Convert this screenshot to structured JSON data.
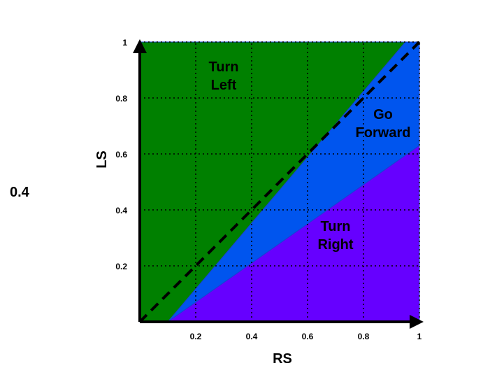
{
  "chart_data": {
    "type": "area",
    "xlabel": "RS",
    "ylabel": "LS",
    "xlim": [
      0,
      1
    ],
    "ylim": [
      0,
      1
    ],
    "x_ticks": [
      {
        "value": 0.2,
        "label": "0.2"
      },
      {
        "value": 0.4,
        "label": "0.4"
      },
      {
        "value": 0.6,
        "label": "0.6"
      },
      {
        "value": 0.8,
        "label": "0.8"
      },
      {
        "value": 1,
        "label": "1"
      }
    ],
    "y_ticks": [
      {
        "value": 0.2,
        "label": "0.2"
      },
      {
        "value": 0.4,
        "label": "0.4"
      },
      {
        "value": 0.6,
        "label": "0.6"
      },
      {
        "value": 0.8,
        "label": "0.8"
      },
      {
        "value": 1,
        "label": "1"
      }
    ],
    "grid": true,
    "regions": [
      {
        "key": "turn-left",
        "lines": [
          "Turn",
          "Left"
        ],
        "color": "#008000",
        "polygon": [
          [
            0,
            0
          ],
          [
            0,
            1
          ],
          [
            1,
            1
          ],
          [
            1,
            0
          ]
        ],
        "label_at": [
          0.3,
          0.88
        ]
      },
      {
        "key": "go-forward",
        "lines": [
          "Go",
          "Forward"
        ],
        "color": "#0055ee",
        "polygon": [
          [
            0.1,
            0
          ],
          [
            0.95,
            1
          ],
          [
            1,
            1
          ],
          [
            1,
            0
          ]
        ],
        "label_at": [
          0.87,
          0.71
        ]
      },
      {
        "key": "turn-right",
        "lines": [
          "Turn",
          "Right"
        ],
        "color": "#6600ff",
        "polygon": [
          [
            0.1,
            0
          ],
          [
            1,
            0.63
          ],
          [
            1,
            0
          ]
        ],
        "label_at": [
          0.7,
          0.31
        ]
      }
    ],
    "reference_line": {
      "x": [
        0,
        1
      ],
      "y": [
        0,
        1
      ],
      "style": "dashed",
      "color": "#000000"
    }
  },
  "stray_label": "0.4"
}
